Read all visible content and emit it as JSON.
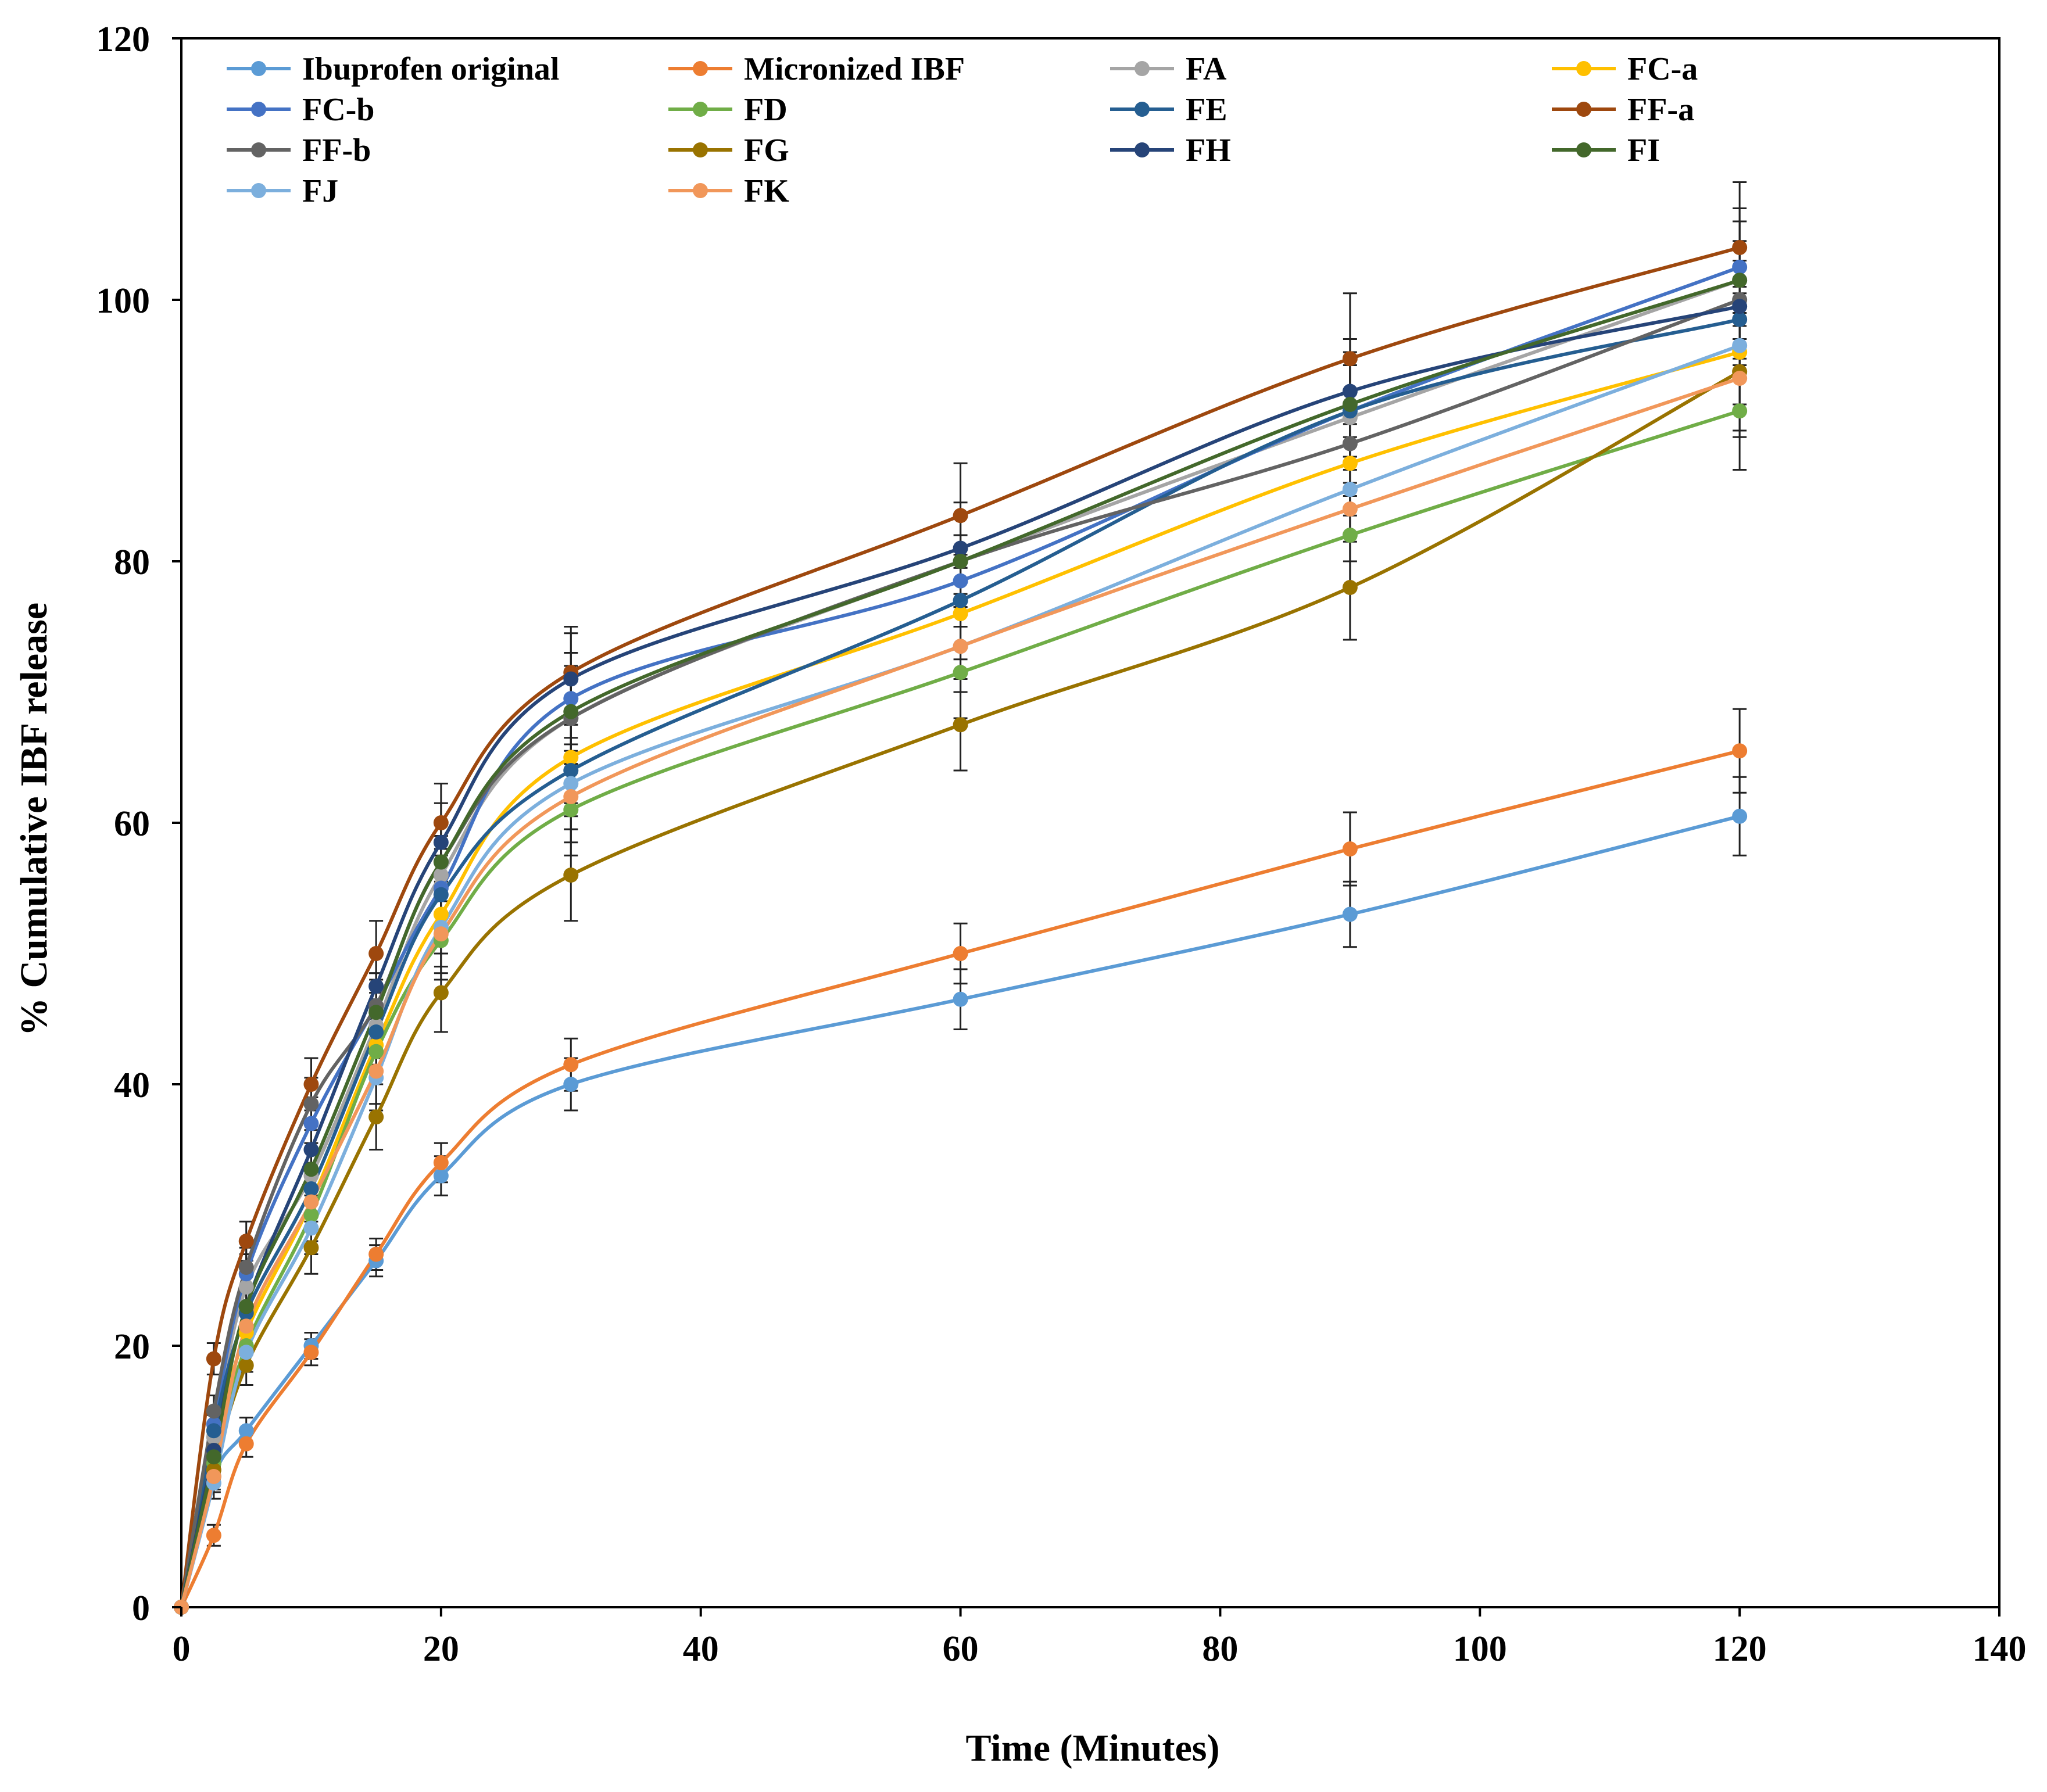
{
  "chart_data": {
    "type": "line",
    "title": "",
    "xlabel": "Time (Minutes)",
    "ylabel": "% Cumulative IBF release",
    "xlim": [
      0,
      140
    ],
    "ylim": [
      0,
      120
    ],
    "xticks": [
      0,
      20,
      40,
      60,
      80,
      100,
      120,
      140
    ],
    "yticks": [
      0,
      20,
      40,
      60,
      80,
      100,
      120
    ],
    "xtick_labels": [
      "0",
      "20",
      "40",
      "60",
      "80",
      "100",
      "120",
      "140"
    ],
    "ytick_labels": [
      "0",
      "20",
      "40",
      "60",
      "80",
      "100",
      "120"
    ],
    "grid": false,
    "legend_position": "top (inside plot, 4 columns)",
    "x": [
      0,
      2.5,
      5,
      10,
      15,
      20,
      30,
      60,
      90,
      120
    ],
    "series": [
      {
        "name": "Ibuprofen original",
        "color": "#5b9bd5",
        "values": [
          0,
          10,
          13.5,
          20,
          26.5,
          33,
          40,
          46.5,
          53,
          60.5
        ],
        "errors": [
          0,
          1,
          1,
          1,
          1.2,
          1.5,
          2,
          2.3,
          2.5,
          3
        ]
      },
      {
        "name": "Micronized IBF",
        "color": "#ed7d31",
        "values": [
          0,
          5.5,
          12.5,
          19.5,
          27,
          34,
          41.5,
          50,
          58,
          65.5
        ],
        "errors": [
          0,
          0.8,
          1,
          1,
          1.2,
          1.5,
          2,
          2.3,
          2.8,
          3.2
        ]
      },
      {
        "name": "FA",
        "color": "#a5a5a5",
        "values": [
          0,
          13,
          24.5,
          33,
          44.5,
          56,
          68,
          80,
          91,
          101.5
        ],
        "errors": [
          0,
          1.2,
          1.5,
          2,
          2.5,
          3,
          3.5,
          3.5,
          4,
          4.5
        ]
      },
      {
        "name": "FC-a",
        "color": "#ffc000",
        "values": [
          0,
          12,
          21,
          31,
          43,
          53,
          65,
          76,
          87.5,
          96
        ],
        "errors": [
          0,
          1.2,
          1.5,
          2,
          2.5,
          3,
          3.5,
          3.5,
          4,
          4.5
        ]
      },
      {
        "name": "FC-b",
        "color": "#4472c4",
        "values": [
          0,
          14,
          25.5,
          37,
          46,
          55,
          69.5,
          78.5,
          91.5,
          102.5
        ],
        "errors": [
          0,
          1.2,
          1.5,
          2,
          2.5,
          3,
          3.5,
          3.5,
          4,
          4.5
        ]
      },
      {
        "name": "FD",
        "color": "#70ad47",
        "values": [
          0,
          11,
          20,
          30,
          42.5,
          51,
          61,
          71.5,
          82,
          91.5
        ],
        "errors": [
          0,
          1.2,
          1.5,
          2,
          2.5,
          3,
          3.5,
          3.5,
          4,
          4.5
        ]
      },
      {
        "name": "FE",
        "color": "#255e91",
        "values": [
          0,
          13.5,
          22.5,
          32,
          44,
          54.5,
          64,
          77,
          91.5,
          98.5
        ],
        "errors": [
          0,
          1.2,
          1.5,
          2,
          2.5,
          3,
          3.5,
          3.5,
          4,
          4.5
        ]
      },
      {
        "name": "FF-a",
        "color": "#9e480e",
        "values": [
          0,
          19,
          28,
          40,
          50,
          60,
          71.5,
          83.5,
          95.5,
          104
        ],
        "errors": [
          0,
          1.2,
          1.5,
          2,
          2.5,
          3,
          3.5,
          4,
          5,
          5
        ]
      },
      {
        "name": "FF-b",
        "color": "#636363",
        "values": [
          0,
          15,
          26,
          38.5,
          46,
          57,
          68,
          80,
          89,
          100
        ],
        "errors": [
          0,
          1.2,
          1.5,
          2,
          2.5,
          3,
          3.5,
          3.5,
          4,
          4.5
        ]
      },
      {
        "name": "FG",
        "color": "#997300",
        "values": [
          0,
          10.5,
          18.5,
          27.5,
          37.5,
          47,
          56,
          67.5,
          78,
          94.5
        ],
        "errors": [
          0,
          1.2,
          1.5,
          2,
          2.5,
          3,
          3.5,
          3.5,
          4,
          4.5
        ]
      },
      {
        "name": "FH",
        "color": "#264478",
        "values": [
          0,
          12,
          23,
          35,
          47.5,
          58.5,
          71,
          81,
          93,
          99.5
        ],
        "errors": [
          0,
          1.2,
          1.5,
          2,
          2.5,
          3,
          3.5,
          3.5,
          4,
          4.5
        ]
      },
      {
        "name": "FI",
        "color": "#43682b",
        "values": [
          0,
          11.5,
          23,
          33.5,
          45.5,
          57,
          68.5,
          80,
          92,
          101.5
        ],
        "errors": [
          0,
          1.2,
          1.5,
          2,
          2.5,
          3,
          3.5,
          3.5,
          4,
          4.5
        ]
      },
      {
        "name": "FJ",
        "color": "#7cafdd",
        "values": [
          0,
          9.5,
          19.5,
          29,
          40.5,
          52,
          63,
          73.5,
          85.5,
          96.5
        ],
        "errors": [
          0,
          1.2,
          1.5,
          2,
          2.5,
          3,
          3.5,
          3.5,
          4,
          4.5
        ]
      },
      {
        "name": "FK",
        "color": "#f1975a",
        "values": [
          0,
          10,
          21.5,
          31,
          41,
          51.5,
          62,
          73.5,
          84,
          94
        ],
        "errors": [
          0,
          1.2,
          1.5,
          2,
          2.5,
          3,
          3.5,
          3.5,
          4,
          4.5
        ]
      }
    ]
  }
}
